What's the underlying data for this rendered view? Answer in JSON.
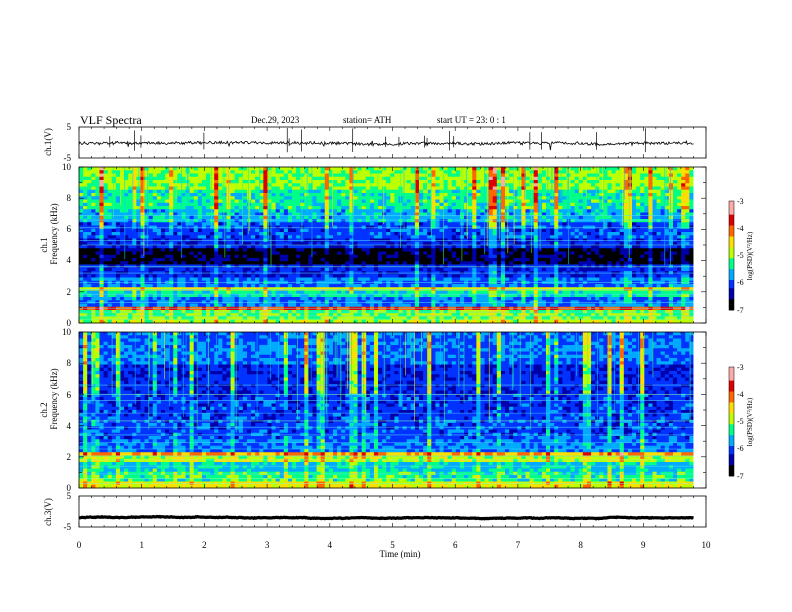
{
  "header": {
    "title": "VLF  Spectra",
    "date": "Dec.29, 2023",
    "station": "station= ATH",
    "start_ut": "start  UT  =    23: 0   : 1"
  },
  "colors": {
    "background": "#ffffff",
    "axis": "#000000",
    "colormap": [
      "#000000",
      "#0000aa",
      "#0033ff",
      "#00aaff",
      "#00ff88",
      "#bbff00",
      "#ffdd00",
      "#ff6600",
      "#dd0000",
      "#ffaaaa",
      "#ffffff"
    ]
  },
  "chart_data": [
    {
      "type": "line",
      "name": "ch1-waveform",
      "ylabel": "ch.1(V)",
      "ylim": [
        -5,
        5
      ],
      "yticks": [
        "5",
        "-5"
      ],
      "xlim": [
        0,
        10
      ],
      "mean_level": -0.2,
      "noise_amplitude": 0.9
    },
    {
      "type": "heatmap",
      "name": "ch1-spectrogram",
      "ylabel_top": "ch.1",
      "ylabel": "Frequency  (kHz)",
      "ylim": [
        0,
        10
      ],
      "yticks": [
        "0",
        "2",
        "4",
        "6",
        "8",
        "10"
      ],
      "xlim": [
        0,
        10
      ],
      "data_end_min": 9.8,
      "colorbar": {
        "label": "log(PSD)(V²/Hz)",
        "range": [
          -7,
          -3
        ],
        "ticks": [
          "-3",
          "-4",
          "-5",
          "-6",
          "-7"
        ]
      },
      "bands": [
        {
          "from_khz": 0.0,
          "to_khz": 0.3,
          "level": 0.55
        },
        {
          "from_khz": 0.3,
          "to_khz": 0.8,
          "level": 0.5
        },
        {
          "from_khz": 0.8,
          "to_khz": 1.1,
          "level": 0.78
        },
        {
          "from_khz": 1.1,
          "to_khz": 1.6,
          "level": 0.3
        },
        {
          "from_khz": 1.6,
          "to_khz": 2.0,
          "level": 0.42
        },
        {
          "from_khz": 2.0,
          "to_khz": 2.3,
          "level": 0.58
        },
        {
          "from_khz": 2.3,
          "to_khz": 3.0,
          "level": 0.3
        },
        {
          "from_khz": 3.0,
          "to_khz": 3.8,
          "level": 0.22
        },
        {
          "from_khz": 3.8,
          "to_khz": 4.8,
          "level": 0.06
        },
        {
          "from_khz": 4.8,
          "to_khz": 5.4,
          "level": 0.22
        },
        {
          "from_khz": 5.4,
          "to_khz": 6.4,
          "level": 0.26
        },
        {
          "from_khz": 6.4,
          "to_khz": 7.2,
          "level": 0.36
        },
        {
          "from_khz": 7.2,
          "to_khz": 8.6,
          "level": 0.44
        },
        {
          "from_khz": 8.6,
          "to_khz": 10.0,
          "level": 0.52
        }
      ],
      "lines_khz": [
        0.25,
        0.45,
        0.7,
        0.95,
        1.3,
        1.85,
        2.15,
        2.6,
        3.2,
        3.6,
        5.0,
        5.3,
        6.1,
        6.6,
        6.9
      ],
      "sferic_density": 0.55
    },
    {
      "type": "heatmap",
      "name": "ch2-spectrogram",
      "ylabel_top": "ch.2",
      "ylabel": "Frequency  (kHz)",
      "ylim": [
        0,
        10
      ],
      "yticks": [
        "0",
        "2",
        "4",
        "6",
        "8",
        "10"
      ],
      "xlim": [
        0,
        10
      ],
      "data_end_min": 9.8,
      "colorbar": {
        "label": "log(PSD)(V²/Hz)",
        "range": [
          -7,
          -3
        ],
        "ticks": [
          "-3",
          "-4",
          "-5",
          "-6",
          "-7"
        ]
      },
      "bands": [
        {
          "from_khz": 0.0,
          "to_khz": 0.4,
          "level": 0.6
        },
        {
          "from_khz": 0.4,
          "to_khz": 1.1,
          "level": 0.45
        },
        {
          "from_khz": 1.1,
          "to_khz": 1.7,
          "level": 0.38
        },
        {
          "from_khz": 1.7,
          "to_khz": 2.0,
          "level": 0.55
        },
        {
          "from_khz": 2.0,
          "to_khz": 2.3,
          "level": 0.7
        },
        {
          "from_khz": 2.3,
          "to_khz": 3.2,
          "level": 0.3
        },
        {
          "from_khz": 3.2,
          "to_khz": 4.5,
          "level": 0.26
        },
        {
          "from_khz": 4.5,
          "to_khz": 6.0,
          "level": 0.24
        },
        {
          "from_khz": 6.0,
          "to_khz": 8.0,
          "level": 0.22
        },
        {
          "from_khz": 8.0,
          "to_khz": 10.0,
          "level": 0.3
        }
      ],
      "lines_khz": [
        0.3,
        0.6,
        0.9,
        1.4,
        1.8,
        2.05,
        2.5,
        2.9,
        3.4,
        3.9,
        4.3,
        4.8,
        5.6,
        6.0,
        6.6
      ],
      "sferic_density": 0.4
    },
    {
      "type": "line",
      "name": "ch3-waveform",
      "ylabel": "ch.3(V)",
      "ylim": [
        -5,
        5
      ],
      "yticks": [
        "5",
        "-5"
      ],
      "xlim": [
        0,
        10
      ],
      "mean_level": -2.0,
      "noise_amplitude": 0.15
    }
  ],
  "xaxis": {
    "label": "Time  (min)",
    "ticks": [
      "0",
      "1",
      "2",
      "3",
      "4",
      "5",
      "6",
      "7",
      "8",
      "9",
      "10"
    ]
  }
}
